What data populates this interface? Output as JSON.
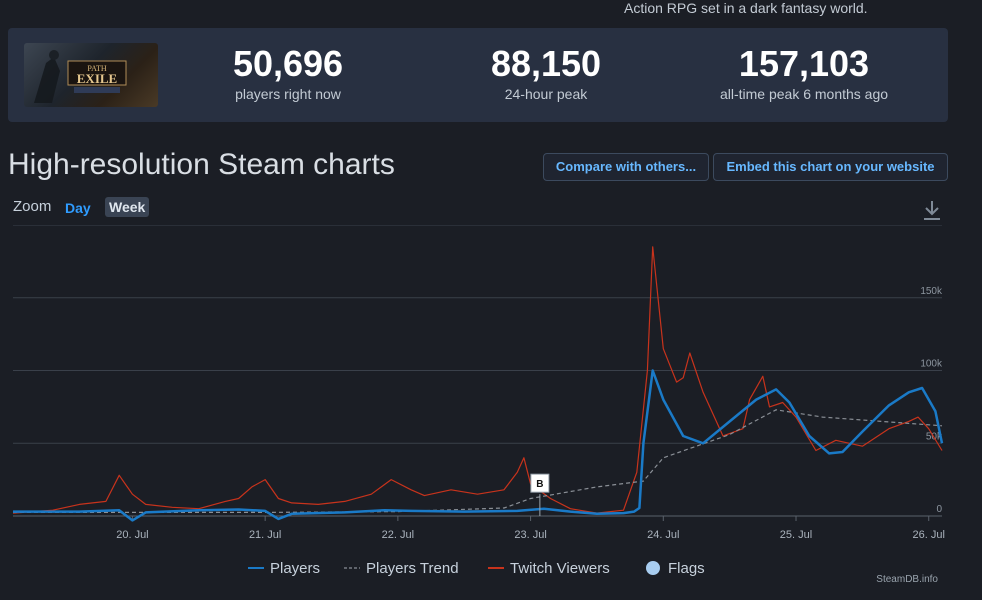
{
  "header": {
    "description": "Action RPG set in a dark fantasy world."
  },
  "game": {
    "logo_text": "PATH OF EXILE"
  },
  "stats": [
    {
      "value": "50,696",
      "label": "players right now"
    },
    {
      "value": "88,150",
      "label": "24-hour peak"
    },
    {
      "value": "157,103",
      "label": "all-time peak 6 months ago"
    }
  ],
  "section_title": "High-resolution Steam charts",
  "buttons": {
    "compare": "Compare with others...",
    "embed": "Embed this chart on your website"
  },
  "zoom": {
    "label": "Zoom",
    "day": "Day",
    "week": "Week"
  },
  "icons": {
    "download": "download-icon"
  },
  "colors": {
    "players": "#1a7ac7",
    "trend": "#8a8f96",
    "twitch": "#c8331c",
    "flags": "#a8cdf0",
    "accent": "#67b8ff"
  },
  "chart_data": {
    "type": "line",
    "x_ticks": [
      "20. Jul",
      "21. Jul",
      "22. Jul",
      "23. Jul",
      "24. Jul",
      "25. Jul",
      "26. Jul"
    ],
    "y_ticks": [
      "0",
      "50k",
      "100k",
      "150k"
    ],
    "ylim": [
      0,
      200000
    ],
    "xlim": [
      19.1,
      26.1
    ],
    "grid": true,
    "legend": [
      "Players",
      "Players Trend",
      "Twitch Viewers",
      "Flags"
    ],
    "legend_position": "bottom",
    "watermark": "SteamDB.info",
    "flags": [
      {
        "label": "B",
        "x": 23.07,
        "y": 15000
      }
    ],
    "series": [
      {
        "name": "Players",
        "points": [
          [
            19.1,
            3000
          ],
          [
            19.6,
            3000
          ],
          [
            19.9,
            4000
          ],
          [
            20.0,
            -3000
          ],
          [
            20.1,
            2500
          ],
          [
            20.5,
            4000
          ],
          [
            20.8,
            4500
          ],
          [
            21.0,
            3500
          ],
          [
            21.1,
            -2000
          ],
          [
            21.2,
            1500
          ],
          [
            21.6,
            2500
          ],
          [
            21.9,
            4000
          ],
          [
            22.1,
            3500
          ],
          [
            22.5,
            3000
          ],
          [
            22.9,
            3500
          ],
          [
            23.1,
            5000
          ],
          [
            23.3,
            3000
          ],
          [
            23.5,
            1500
          ],
          [
            23.7,
            2000
          ],
          [
            23.78,
            3000
          ],
          [
            23.82,
            5500
          ],
          [
            23.85,
            50000
          ],
          [
            23.92,
            100000
          ],
          [
            24.0,
            80000
          ],
          [
            24.15,
            55000
          ],
          [
            24.3,
            50000
          ],
          [
            24.5,
            65000
          ],
          [
            24.7,
            80000
          ],
          [
            24.85,
            87000
          ],
          [
            24.95,
            78000
          ],
          [
            25.1,
            55000
          ],
          [
            25.25,
            43000
          ],
          [
            25.35,
            44000
          ],
          [
            25.5,
            58000
          ],
          [
            25.7,
            76000
          ],
          [
            25.85,
            85000
          ],
          [
            25.95,
            88000
          ],
          [
            26.05,
            72000
          ],
          [
            26.1,
            50000
          ]
        ]
      },
      {
        "name": "Players Trend",
        "points": [
          [
            19.1,
            2500
          ],
          [
            20.0,
            2500
          ],
          [
            21.0,
            2500
          ],
          [
            22.0,
            3000
          ],
          [
            22.8,
            5500
          ],
          [
            23.0,
            12000
          ],
          [
            23.5,
            20000
          ],
          [
            23.85,
            24000
          ],
          [
            24.0,
            40000
          ],
          [
            24.5,
            56000
          ],
          [
            24.85,
            73000
          ],
          [
            25.2,
            68000
          ],
          [
            25.8,
            64000
          ],
          [
            26.1,
            62000
          ]
        ]
      },
      {
        "name": "Twitch Viewers",
        "points": [
          [
            19.1,
            2000
          ],
          [
            19.4,
            4000
          ],
          [
            19.6,
            8000
          ],
          [
            19.8,
            10000
          ],
          [
            19.9,
            28000
          ],
          [
            20.0,
            15000
          ],
          [
            20.1,
            8000
          ],
          [
            20.3,
            6000
          ],
          [
            20.5,
            5000
          ],
          [
            20.7,
            10000
          ],
          [
            20.8,
            12000
          ],
          [
            20.9,
            20000
          ],
          [
            21.0,
            25000
          ],
          [
            21.1,
            12000
          ],
          [
            21.2,
            9000
          ],
          [
            21.4,
            8000
          ],
          [
            21.6,
            10000
          ],
          [
            21.8,
            15000
          ],
          [
            21.95,
            25000
          ],
          [
            22.1,
            18000
          ],
          [
            22.2,
            14000
          ],
          [
            22.4,
            18000
          ],
          [
            22.6,
            15000
          ],
          [
            22.8,
            18000
          ],
          [
            22.9,
            30000
          ],
          [
            22.95,
            40000
          ],
          [
            23.0,
            22000
          ],
          [
            23.15,
            12000
          ],
          [
            23.3,
            5000
          ],
          [
            23.5,
            2000
          ],
          [
            23.7,
            4000
          ],
          [
            23.8,
            30000
          ],
          [
            23.88,
            100000
          ],
          [
            23.92,
            185000
          ],
          [
            24.0,
            115000
          ],
          [
            24.1,
            92000
          ],
          [
            24.15,
            95000
          ],
          [
            24.2,
            112000
          ],
          [
            24.3,
            85000
          ],
          [
            24.45,
            55000
          ],
          [
            24.6,
            60000
          ],
          [
            24.65,
            80000
          ],
          [
            24.75,
            96000
          ],
          [
            24.8,
            75000
          ],
          [
            24.9,
            78000
          ],
          [
            25.0,
            68000
          ],
          [
            25.15,
            45000
          ],
          [
            25.3,
            52000
          ],
          [
            25.5,
            48000
          ],
          [
            25.7,
            60000
          ],
          [
            25.85,
            65000
          ],
          [
            25.92,
            68000
          ],
          [
            26.0,
            60000
          ],
          [
            26.1,
            45000
          ]
        ]
      }
    ]
  }
}
